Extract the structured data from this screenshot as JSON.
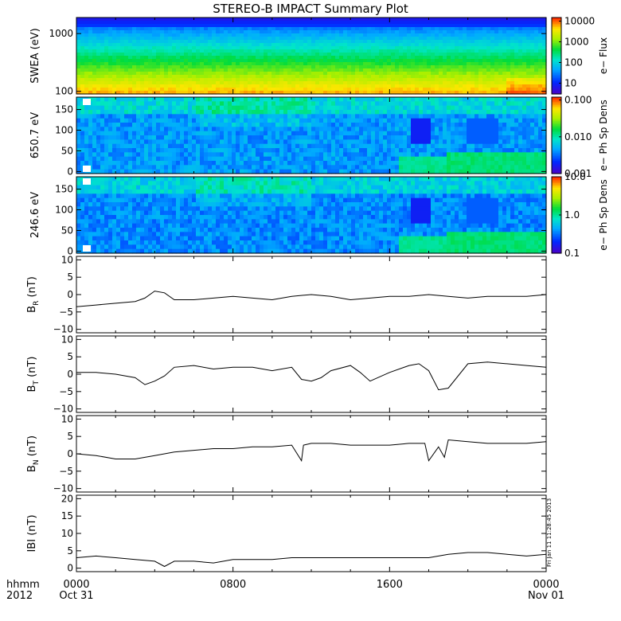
{
  "chart_data": {
    "title": "STEREO-B IMPACT Summary Plot",
    "type": "line",
    "x_axis": {
      "row1_label": "hhmm",
      "row2_label": "2012",
      "ticks": [
        {
          "hours": 0,
          "label": "0000",
          "sublabel": "Oct 31"
        },
        {
          "hours": 8,
          "label": "0800",
          "sublabel": ""
        },
        {
          "hours": 16,
          "label": "1600",
          "sublabel": ""
        },
        {
          "hours": 24,
          "label": "0000",
          "sublabel": "Nov 01"
        }
      ],
      "range_hours": [
        0,
        24
      ]
    },
    "spectrograms": [
      {
        "id": "swea",
        "ylabel": "SWEA (eV)",
        "yscale": "log",
        "ylim": [
          90,
          1900
        ],
        "yticks": [
          {
            "v": 100,
            "label": "100"
          },
          {
            "v": 1000,
            "label": "1000"
          }
        ],
        "colorbar": {
          "label": "e− Flux",
          "scale": "log",
          "range": [
            3,
            15000
          ],
          "ticks": [
            {
              "v": 10,
              "label": "10"
            },
            {
              "v": 100,
              "label": "100"
            },
            {
              "v": 1000,
              "label": "1000"
            },
            {
              "v": 10000,
              "label": "10000"
            }
          ]
        }
      },
      {
        "id": "pad650",
        "ylabel": "650.7 eV",
        "yscale": "linear",
        "ylim": [
          -5,
          180
        ],
        "yticks": [
          {
            "v": 0,
            "label": "0"
          },
          {
            "v": 50,
            "label": "50"
          },
          {
            "v": 100,
            "label": "100"
          },
          {
            "v": 150,
            "label": "150"
          }
        ],
        "colorbar": {
          "label": "e− Ph Sp Dens",
          "scale": "log",
          "range": [
            0.001,
            0.12
          ],
          "ticks": [
            {
              "v": 0.001,
              "label": "0.001"
            },
            {
              "v": 0.01,
              "label": "0.010"
            },
            {
              "v": 0.1,
              "label": "0.100"
            }
          ]
        }
      },
      {
        "id": "pad246",
        "ylabel": "246.6 eV",
        "yscale": "linear",
        "ylim": [
          -5,
          180
        ],
        "yticks": [
          {
            "v": 0,
            "label": "0"
          },
          {
            "v": 50,
            "label": "50"
          },
          {
            "v": 100,
            "label": "100"
          },
          {
            "v": 150,
            "label": "150"
          }
        ],
        "colorbar": {
          "label": "e− Ph Sp Dens",
          "scale": "log",
          "range": [
            0.1,
            10
          ],
          "ticks": [
            {
              "v": 0.1,
              "label": "0.1"
            },
            {
              "v": 1,
              "label": "1.0"
            },
            {
              "v": 10,
              "label": "10.0"
            }
          ]
        }
      }
    ],
    "series": [
      {
        "name": "BR",
        "ylabel_main": "B",
        "ylabel_sub": "R",
        "ylabel_unit": "(nT)",
        "ylim": [
          -11,
          11
        ],
        "yticks": [
          -10,
          -5,
          0,
          5,
          10
        ],
        "x": [
          0,
          1,
          2,
          3,
          3.5,
          4,
          4.5,
          5,
          6,
          7,
          8,
          9,
          10,
          11,
          12,
          13,
          14,
          15,
          16,
          17,
          18,
          19,
          20,
          21,
          22,
          23,
          24
        ],
        "values": [
          -3.5,
          -3,
          -2.5,
          -2,
          -1,
          1,
          0.5,
          -1.5,
          -1.5,
          -1,
          -0.5,
          -1,
          -1.5,
          -0.5,
          0,
          -0.5,
          -1.5,
          -1,
          -0.5,
          -0.5,
          0,
          -0.5,
          -1,
          -0.5,
          -0.5,
          -0.5,
          0
        ]
      },
      {
        "name": "BT",
        "ylabel_main": "B",
        "ylabel_sub": "T",
        "ylabel_unit": "(nT)",
        "ylim": [
          -11,
          11
        ],
        "yticks": [
          -10,
          -5,
          0,
          5,
          10
        ],
        "x": [
          0,
          1,
          2,
          3,
          3.5,
          4,
          4.5,
          5,
          6,
          7,
          8,
          9,
          10,
          11,
          11.5,
          12,
          12.5,
          13,
          14,
          14.5,
          15,
          16,
          17,
          17.5,
          18,
          18.5,
          19,
          20,
          21,
          22,
          23,
          24
        ],
        "values": [
          0.5,
          0.5,
          0,
          -1,
          -3,
          -2,
          -0.5,
          2,
          2.5,
          1.5,
          2,
          2,
          1,
          2,
          -1.5,
          -2,
          -1,
          1,
          2.5,
          0.5,
          -2,
          0.5,
          2.5,
          3,
          1,
          -4.5,
          -4,
          3,
          3.5,
          3,
          2.5,
          2
        ]
      },
      {
        "name": "BN",
        "ylabel_main": "B",
        "ylabel_sub": "N",
        "ylabel_unit": "(nT)",
        "ylim": [
          -11,
          11
        ],
        "yticks": [
          -10,
          -5,
          0,
          5,
          10
        ],
        "x": [
          0,
          1,
          2,
          3,
          4,
          5,
          6,
          7,
          8,
          9,
          10,
          11,
          11.5,
          11.6,
          12,
          13,
          14,
          15,
          16,
          17,
          17.5,
          17.8,
          18,
          18.5,
          18.8,
          19,
          20,
          21,
          22,
          23,
          24
        ],
        "values": [
          0,
          -0.5,
          -1.5,
          -1.5,
          -0.5,
          0.5,
          1,
          1.5,
          1.5,
          2,
          2,
          2.5,
          -2,
          2.5,
          3,
          3,
          2.5,
          2.5,
          2.5,
          3,
          3,
          3,
          -2,
          2,
          -1,
          4,
          3.5,
          3,
          3,
          3,
          3.5
        ]
      },
      {
        "name": "|B|",
        "ylabel_main": "IBI",
        "ylabel_sub": "",
        "ylabel_unit": "(nT)",
        "ylim": [
          -1,
          21
        ],
        "yticks": [
          0,
          5,
          10,
          15,
          20
        ],
        "x": [
          0,
          1,
          2,
          3,
          4,
          4.5,
          5,
          6,
          7,
          8,
          9,
          10,
          11,
          12,
          13,
          14,
          15,
          16,
          17,
          18,
          19,
          20,
          21,
          22,
          23,
          24
        ],
        "values": [
          3,
          3.5,
          3,
          2.5,
          2,
          0.5,
          2,
          2,
          1.5,
          2.5,
          2.5,
          2.5,
          3,
          3,
          3,
          3,
          3,
          3,
          3,
          3,
          4,
          4.5,
          4.5,
          4,
          3.5,
          4
        ]
      }
    ]
  },
  "footer": {
    "stamp": "Fri Jan 11 11:28:45 2013"
  }
}
